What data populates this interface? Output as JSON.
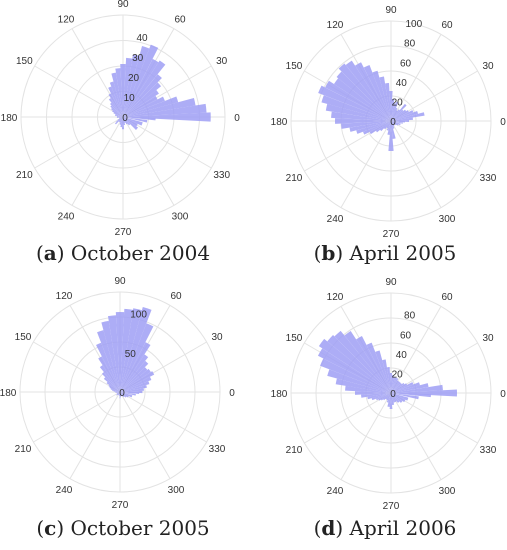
{
  "colors": {
    "bar": "#9f9ff4",
    "grid": "#e3e3e3",
    "text": "#333333"
  },
  "panels": [
    {
      "letter": "a",
      "caption": "October 2004"
    },
    {
      "letter": "b",
      "caption": "April 2005"
    },
    {
      "letter": "c",
      "caption": "October 2005"
    },
    {
      "letter": "d",
      "caption": "April 2006"
    }
  ],
  "chart_data": [
    {
      "type": "polar-bar",
      "angle_ticks": [
        "0",
        "30",
        "60",
        "90",
        "120",
        "150",
        "180",
        "210",
        "240",
        "270",
        "300",
        "330"
      ],
      "r_ticks": [
        0,
        10,
        20,
        30,
        40
      ],
      "rmax": 50,
      "angles": [
        0,
        6,
        12,
        18,
        24,
        30,
        36,
        42,
        48,
        54,
        60,
        66,
        72,
        78,
        84,
        90,
        96,
        102,
        108,
        114,
        120,
        126,
        132,
        138,
        144,
        150,
        156,
        162,
        168,
        174,
        180,
        186,
        192,
        198,
        204,
        210,
        216,
        222,
        230,
        240,
        250,
        260,
        270,
        280,
        290,
        300,
        310,
        320,
        330,
        340,
        350,
        356
      ],
      "values": [
        43,
        41,
        36,
        28,
        22,
        19,
        21,
        24,
        27,
        33,
        32,
        38,
        36,
        31,
        29,
        26,
        24,
        22,
        18,
        16,
        13,
        11,
        9,
        8,
        7,
        6,
        5,
        4,
        4,
        3,
        3,
        3,
        2,
        2,
        2,
        3,
        4,
        5,
        3,
        3,
        4,
        5,
        6,
        4,
        3,
        4,
        5,
        9,
        8,
        10,
        12,
        16
      ]
    },
    {
      "type": "polar-bar",
      "angle_ticks": [
        "0",
        "30",
        "60",
        "90",
        "120",
        "150",
        "180",
        "210",
        "240",
        "270",
        "300",
        "330"
      ],
      "r_ticks": [
        0,
        20,
        40,
        60,
        80,
        100
      ],
      "rmax": 100,
      "angles": [
        0,
        6,
        12,
        18,
        24,
        30,
        36,
        42,
        48,
        54,
        60,
        66,
        72,
        78,
        84,
        90,
        96,
        102,
        108,
        114,
        120,
        126,
        132,
        138,
        144,
        150,
        156,
        162,
        168,
        174,
        180,
        186,
        192,
        198,
        204,
        210,
        216,
        222,
        230,
        240,
        250,
        260,
        270,
        280,
        290,
        300,
        310,
        320,
        330,
        340,
        350,
        356
      ],
      "values": [
        18,
        22,
        34,
        28,
        24,
        20,
        18,
        16,
        22,
        14,
        12,
        14,
        20,
        18,
        22,
        30,
        38,
        45,
        52,
        60,
        66,
        72,
        74,
        70,
        68,
        74,
        78,
        72,
        66,
        60,
        56,
        50,
        42,
        36,
        30,
        24,
        18,
        14,
        10,
        8,
        10,
        14,
        30,
        18,
        8,
        6,
        5,
        6,
        8,
        10,
        12,
        14
      ]
    },
    {
      "type": "polar-bar",
      "angle_ticks": [
        "0",
        "30",
        "60",
        "90",
        "120",
        "150",
        "180",
        "210",
        "240",
        "270",
        "300",
        "330"
      ],
      "r_ticks": [
        0,
        50,
        100
      ],
      "rmax": 125,
      "angles": [
        0,
        6,
        12,
        18,
        24,
        30,
        36,
        42,
        48,
        54,
        60,
        66,
        72,
        78,
        84,
        90,
        96,
        102,
        108,
        114,
        120,
        126,
        132,
        138,
        144,
        150,
        156,
        162,
        168,
        174,
        180,
        186,
        192,
        198,
        204,
        210,
        216,
        222,
        230,
        240,
        250,
        260,
        270,
        280,
        290,
        300,
        310,
        320,
        330,
        340,
        350,
        356
      ],
      "values": [
        28,
        30,
        34,
        38,
        42,
        48,
        46,
        44,
        50,
        56,
        70,
        92,
        110,
        106,
        104,
        100,
        96,
        90,
        80,
        66,
        50,
        40,
        32,
        26,
        20,
        16,
        14,
        12,
        10,
        8,
        6,
        6,
        5,
        4,
        4,
        4,
        5,
        6,
        5,
        4,
        4,
        5,
        8,
        6,
        5,
        6,
        8,
        10,
        12,
        16,
        20,
        24
      ]
    },
    {
      "type": "polar-bar",
      "angle_ticks": [
        "0",
        "30",
        "60",
        "90",
        "120",
        "150",
        "180",
        "210",
        "240",
        "270",
        "300",
        "330"
      ],
      "r_ticks": [
        0,
        20,
        40,
        60,
        80
      ],
      "rmax": 100,
      "angles": [
        0,
        6,
        12,
        18,
        24,
        30,
        36,
        42,
        48,
        54,
        60,
        66,
        72,
        78,
        84,
        90,
        96,
        102,
        108,
        114,
        120,
        126,
        132,
        138,
        144,
        150,
        156,
        162,
        168,
        174,
        180,
        186,
        192,
        198,
        204,
        210,
        216,
        222,
        230,
        240,
        250,
        260,
        270,
        280,
        290,
        300,
        310,
        320,
        330,
        340,
        350,
        356
      ],
      "values": [
        66,
        52,
        38,
        30,
        24,
        18,
        16,
        14,
        14,
        14,
        14,
        16,
        16,
        16,
        18,
        20,
        26,
        34,
        44,
        54,
        64,
        74,
        80,
        82,
        86,
        82,
        76,
        66,
        56,
        46,
        36,
        30,
        24,
        20,
        16,
        14,
        12,
        10,
        8,
        8,
        10,
        14,
        16,
        12,
        10,
        10,
        12,
        14,
        16,
        18,
        28,
        40
      ]
    }
  ]
}
